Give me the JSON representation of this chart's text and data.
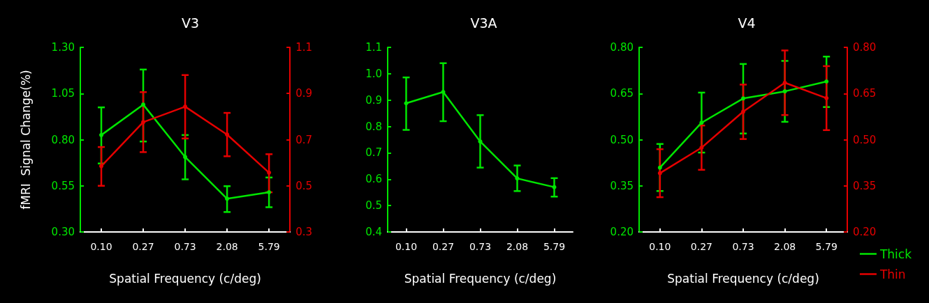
{
  "chart_data": [
    {
      "type": "line",
      "title": "V3",
      "xlabel": "Spatial Frequency (c/deg)",
      "ylabel": "fMRI  Signal Change(%)",
      "categories": [
        "0.10",
        "0.27",
        "0.73",
        "2.08",
        "5.79"
      ],
      "series": [
        {
          "color": "#00e600",
          "values": [
            0.825,
            0.99,
            0.706,
            0.48,
            0.515
          ],
          "errors": [
            [
              0.671,
              0.975
            ],
            [
              0.79,
              1.18
            ],
            [
              0.585,
              0.825
            ],
            [
              0.408,
              0.548
            ],
            [
              0.434,
              0.595
            ]
          ]
        },
        {
          "color": "#e60000",
          "axis": "y2",
          "values": [
            0.585,
            0.776,
            0.843,
            0.722,
            0.557
          ],
          "errors": [
            [
              0.5,
              0.668
            ],
            [
              0.646,
              0.906
            ],
            [
              0.705,
              0.98
            ],
            [
              0.628,
              0.816
            ],
            [
              0.472,
              0.637
            ]
          ]
        }
      ],
      "ylim": [
        0.3,
        1.3
      ],
      "yticks": [
        {
          "value": 0.3,
          "label": "0.30"
        },
        {
          "value": 0.55,
          "label": "0.55"
        },
        {
          "value": 0.8,
          "label": "0.80"
        },
        {
          "value": 1.05,
          "label": "1.05"
        },
        {
          "value": 1.3,
          "label": "1.30"
        }
      ],
      "y2lim": [
        0.3,
        1.1
      ],
      "y2ticks": [
        0.3,
        0.5,
        0.7,
        0.9,
        1.1
      ],
      "marker": "circle",
      "line_style": "solid"
    },
    {
      "type": "line",
      "title": "V3A",
      "xlabel": "Spatial Frequency (c/deg)",
      "categories": [
        "0.10",
        "0.27",
        "0.73",
        "2.08",
        "5.79"
      ],
      "series": [
        {
          "color": "#00e600",
          "values": [
            0.888,
            0.931,
            0.743,
            0.603,
            0.57
          ],
          "errors": [
            [
              0.787,
              0.986
            ],
            [
              0.82,
              1.04
            ],
            [
              0.644,
              0.843
            ],
            [
              0.555,
              0.652
            ],
            [
              0.534,
              0.604
            ]
          ]
        }
      ],
      "ylim": [
        0.4,
        1.1
      ],
      "yticks": [
        0.4,
        0.5,
        0.6,
        0.7,
        0.8,
        0.9,
        {
          "value": 1.0,
          "label": "1.0"
        },
        1.1
      ],
      "marker": "circle",
      "line_style": "solid"
    },
    {
      "type": "line",
      "title": "V4",
      "xlabel": "Spatial Frequency (c/deg)",
      "categories": [
        "0.10",
        "0.27",
        "0.73",
        "2.08",
        "5.79"
      ],
      "series": [
        {
          "name": "Thick",
          "color": "#00e600",
          "values": [
            0.409,
            0.555,
            0.634,
            0.657,
            0.689
          ],
          "errors": [
            [
              0.333,
              0.486
            ],
            [
              0.458,
              0.653
            ],
            [
              0.52,
              0.746
            ],
            [
              0.558,
              0.756
            ],
            [
              0.606,
              0.77
            ]
          ]
        },
        {
          "name": "Thin",
          "color": "#e60000",
          "axis": "y2",
          "values": [
            0.391,
            0.474,
            0.591,
            0.685,
            0.635
          ],
          "errors": [
            [
              0.313,
              0.469
            ],
            [
              0.402,
              0.546
            ],
            [
              0.502,
              0.679
            ],
            [
              0.58,
              0.79
            ],
            [
              0.531,
              0.739
            ]
          ]
        }
      ],
      "ylim": [
        0.2,
        0.8
      ],
      "yticks": [
        {
          "value": 0.2,
          "label": "0.20"
        },
        {
          "value": 0.35,
          "label": "0.35"
        },
        {
          "value": 0.5,
          "label": "0.50"
        },
        {
          "value": 0.65,
          "label": "0.65"
        },
        {
          "value": 0.8,
          "label": "0.80"
        }
      ],
      "y2lim": [
        0.2,
        0.8
      ],
      "y2ticks": [
        {
          "value": 0.2,
          "label": "0.20"
        },
        {
          "value": 0.35,
          "label": "0.35"
        },
        {
          "value": 0.5,
          "label": "0.50"
        },
        {
          "value": 0.65,
          "label": "0.65"
        },
        {
          "value": 0.8,
          "label": "0.80"
        }
      ],
      "marker": "circle",
      "line_style": "solid",
      "legend": "bottom right"
    }
  ]
}
